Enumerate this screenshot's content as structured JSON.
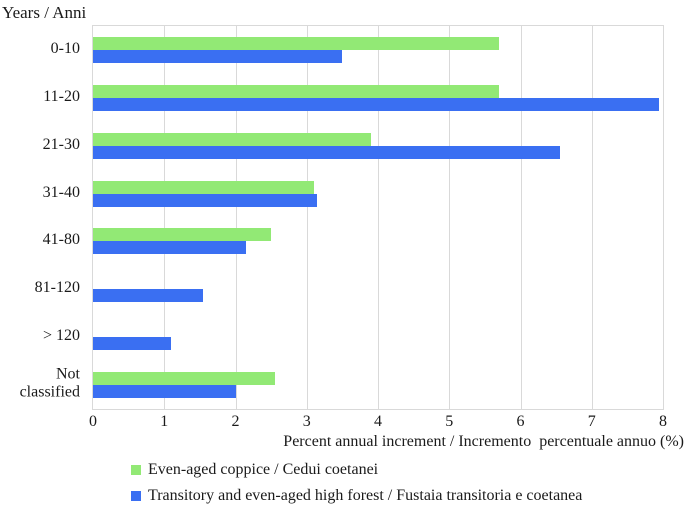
{
  "chart_data": {
    "type": "bar",
    "orientation": "horizontal",
    "title": "Years / Anni",
    "categories": [
      "0-10",
      "11-20",
      "21-30",
      "31-40",
      "41-80",
      "81-120",
      "> 120",
      "Not classified"
    ],
    "series": [
      {
        "name": "Even-aged coppice / Cedui coetanei",
        "color": "#92e975",
        "values": [
          5.7,
          5.7,
          3.9,
          3.1,
          2.5,
          0,
          0,
          2.55
        ]
      },
      {
        "name": "Transitory and even-aged high forest / Fustaia transitoria e coetanea",
        "color": "#3a6ff2",
        "values": [
          3.5,
          7.95,
          6.55,
          3.15,
          2.15,
          1.55,
          1.1,
          2.0
        ]
      }
    ],
    "xlabel": "Percent annual increment / Incremento  percentuale annuo (%)",
    "xlim": [
      0,
      8
    ],
    "xticks": [
      0,
      1,
      2,
      3,
      4,
      5,
      6,
      7,
      8
    ],
    "grid": "vertical",
    "grid_color": "#d9d9d9",
    "legend_position": "bottom-left"
  }
}
